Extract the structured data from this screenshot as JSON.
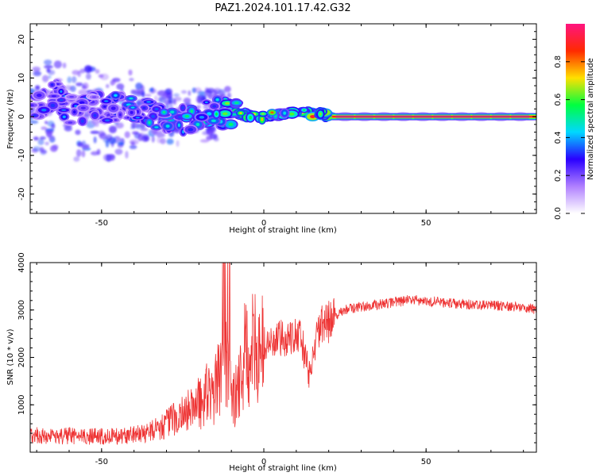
{
  "figure": {
    "title": "PAZ1.2024.101.17.42.G32"
  },
  "chart_data": [
    {
      "type": "heatmap",
      "title": "PAZ1.2024.101.17.42.G32",
      "xlabel": "Height of straight line (km)",
      "ylabel": "Frequency (Hz)",
      "xlim": [
        -72,
        84
      ],
      "ylim": [
        -25,
        24
      ],
      "xticks": [
        -50,
        0,
        50
      ],
      "yticks": [
        -20,
        -10,
        0,
        10,
        20
      ],
      "colorbar": {
        "label": "Normalized spectral amplitude",
        "range": [
          0,
          1
        ],
        "ticks": [
          0.0,
          0.2,
          0.4,
          0.6,
          0.8
        ],
        "colormap": [
          "#ffffff",
          "#b080ff",
          "#2a00ff",
          "#00d8ff",
          "#00ff40",
          "#ffe000",
          "#ff2a00",
          "#ff1480"
        ]
      },
      "ridge": [
        {
          "x": -72,
          "y": 2.5,
          "amp": 0.35
        },
        {
          "x": -68,
          "y": 3.5,
          "amp": 0.4
        },
        {
          "x": -64,
          "y": 5.5,
          "amp": 0.45
        },
        {
          "x": -60,
          "y": 2.0,
          "amp": 0.35
        },
        {
          "x": -56,
          "y": 1.5,
          "amp": 0.4
        },
        {
          "x": -52,
          "y": 3.0,
          "amp": 0.35
        },
        {
          "x": -48,
          "y": 2.0,
          "amp": 0.4
        },
        {
          "x": -44,
          "y": 3.0,
          "amp": 0.45
        },
        {
          "x": -40,
          "y": 2.5,
          "amp": 0.45
        },
        {
          "x": -36,
          "y": 1.5,
          "amp": 0.5
        },
        {
          "x": -32,
          "y": 0.0,
          "amp": 0.5
        },
        {
          "x": -28,
          "y": -1.5,
          "amp": 0.5
        },
        {
          "x": -24,
          "y": -0.5,
          "amp": 0.55
        },
        {
          "x": -20,
          "y": 0.5,
          "amp": 0.55
        },
        {
          "x": -16,
          "y": 1.5,
          "amp": 0.55
        },
        {
          "x": -12,
          "y": 1.0,
          "amp": 0.6
        },
        {
          "x": -8,
          "y": 0.5,
          "amp": 0.75
        },
        {
          "x": -4,
          "y": 0.5,
          "amp": 0.8
        },
        {
          "x": 0,
          "y": 0.0,
          "amp": 0.85
        },
        {
          "x": 4,
          "y": 0.5,
          "amp": 0.8
        },
        {
          "x": 8,
          "y": 0.8,
          "amp": 0.8
        },
        {
          "x": 10,
          "y": 1.5,
          "amp": 0.85
        },
        {
          "x": 14,
          "y": 0.8,
          "amp": 0.85
        },
        {
          "x": 18,
          "y": 0.8,
          "amp": 0.85
        },
        {
          "x": 21,
          "y": 0.0,
          "amp": 0.95
        },
        {
          "x": 40,
          "y": 0.0,
          "amp": 0.98
        },
        {
          "x": 60,
          "y": 0.0,
          "amp": 0.98
        },
        {
          "x": 84,
          "y": 0.0,
          "amp": 0.98
        }
      ]
    },
    {
      "type": "line",
      "xlabel": "Height of straight line (km)",
      "ylabel": "SNR (10 * v/v)",
      "xlim": [
        -72,
        84
      ],
      "ylim": [
        0,
        4000
      ],
      "xticks": [
        -50,
        0,
        50
      ],
      "yticks": [
        1000,
        2000,
        3000,
        4000
      ],
      "color": "#ee3333",
      "series": [
        {
          "x": [
            -72,
            -68,
            -64,
            -60,
            -56,
            -52,
            -48,
            -44,
            -40,
            -36,
            -32,
            -28,
            -24,
            -20,
            -18,
            -16,
            -14,
            -12,
            -11,
            -10,
            -8,
            -6,
            -4,
            -2,
            0,
            2,
            4,
            6,
            8,
            10,
            12,
            14,
            16,
            18,
            20,
            22,
            25,
            30,
            35,
            40,
            45,
            50,
            55,
            60,
            65,
            70,
            75,
            80,
            84
          ],
          "y": [
            350,
            320,
            300,
            330,
            300,
            320,
            310,
            330,
            350,
            400,
            500,
            650,
            800,
            1000,
            1150,
            1100,
            1400,
            2100,
            2000,
            900,
            1200,
            1900,
            2000,
            2100,
            2200,
            2250,
            2300,
            2350,
            2400,
            2500,
            2200,
            1600,
            2300,
            2600,
            2700,
            2850,
            3000,
            3050,
            3100,
            3150,
            3200,
            3180,
            3150,
            3120,
            3100,
            3080,
            3070,
            3050,
            3000
          ]
        }
      ]
    }
  ]
}
